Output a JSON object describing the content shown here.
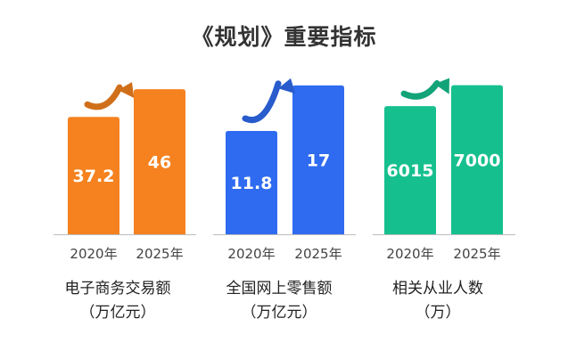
{
  "title": "《规划》重要指标",
  "chart_data": [
    {
      "type": "bar",
      "categories": [
        "2020年",
        "2025年"
      ],
      "values": [
        37.2,
        46
      ],
      "value_labels": [
        "37.2",
        "46"
      ],
      "ylim": [
        0,
        50
      ],
      "color": "#F5821F",
      "label_line1": "电子商务交易额",
      "label_line2": "（万亿元）"
    },
    {
      "type": "bar",
      "categories": [
        "2020年",
        "2025年"
      ],
      "values": [
        11.8,
        17
      ],
      "value_labels": [
        "11.8",
        "17"
      ],
      "ylim": [
        0,
        18
      ],
      "color": "#2F6BF0",
      "label_line1": "全国网上零售额",
      "label_line2": "（万亿元）"
    },
    {
      "type": "bar",
      "categories": [
        "2020年",
        "2025年"
      ],
      "values": [
        6015,
        7000
      ],
      "value_labels": [
        "6015",
        "7000"
      ],
      "ylim": [
        0,
        7400
      ],
      "color": "#16C08E",
      "label_line1": "相关从业人数",
      "label_line2": "（万）"
    }
  ]
}
